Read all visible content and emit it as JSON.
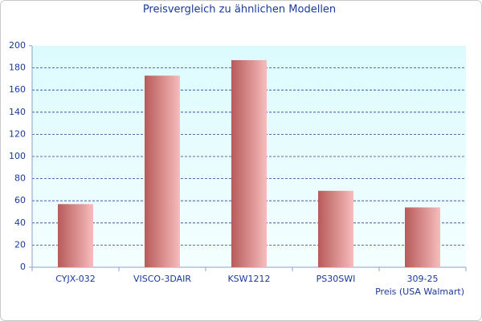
{
  "chart_data": {
    "type": "bar",
    "title": "Preisvergleich zu ähnlichen Modellen",
    "x_label": "Preis (USA Walmart)",
    "categories": [
      "CYJX-032",
      "VISCO-3DAIR",
      "KSW1212",
      "PS30SWI",
      "309-25"
    ],
    "values": [
      57,
      173,
      187,
      69,
      54
    ],
    "color": "#b85a5a",
    "ylim": [
      0,
      200
    ],
    "yticks": [
      0,
      20,
      40,
      60,
      80,
      100,
      120,
      140,
      160,
      180,
      200
    ],
    "grid": true
  }
}
